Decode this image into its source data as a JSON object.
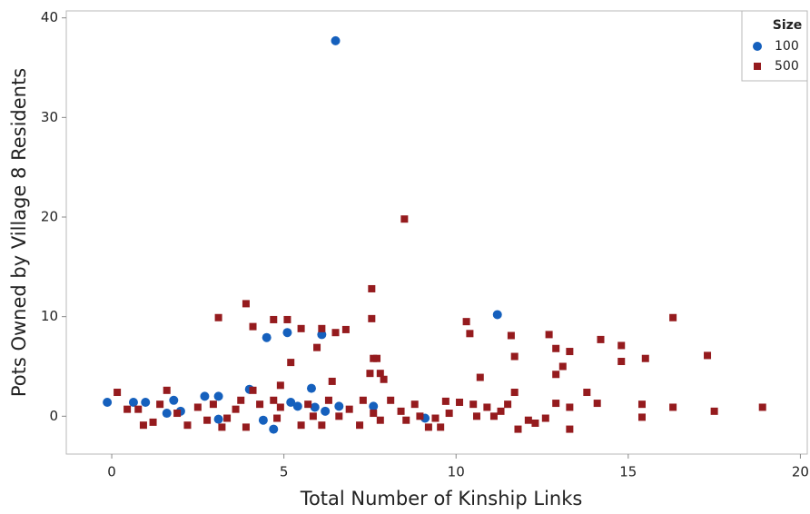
{
  "chart_data": {
    "type": "scatter",
    "xlabel": "Total Number of Kinship Links",
    "ylabel": "Pots Owned by Village 8 Residents",
    "legend_title": "Size",
    "legend": "upper right",
    "xlim": [
      -1.32,
      20.2
    ],
    "ylim": [
      -3.8,
      40.7
    ],
    "xticks": [
      0,
      5,
      10,
      15,
      20
    ],
    "yticks": [
      0,
      10,
      20,
      30,
      40
    ],
    "series": [
      {
        "name": "100",
        "color": "#1560bd",
        "marker": "circle",
        "x": [
          -0.13,
          0.63,
          0.98,
          1.8,
          1.6,
          2.0,
          2.7,
          3.1,
          3.1,
          4.0,
          4.5,
          4.7,
          4.4,
          5.1,
          5.2,
          5.4,
          5.8,
          5.9,
          6.1,
          6.5,
          6.6,
          7.6,
          9.1,
          11.2,
          6.2
        ],
        "values": [
          1.4,
          1.4,
          1.4,
          1.6,
          0.3,
          0.5,
          2.0,
          2.0,
          -0.3,
          2.7,
          7.9,
          -1.3,
          -0.4,
          8.4,
          1.4,
          1.0,
          2.8,
          0.9,
          8.2,
          37.7,
          1.0,
          1.0,
          -0.2,
          10.2,
          0.5
        ]
      },
      {
        "name": "500",
        "color": "#951b1e",
        "marker": "square",
        "x": [
          8.5,
          3.9,
          3.1,
          4.1,
          4.7,
          5.1,
          5.5,
          6.1,
          6.5,
          6.8,
          5.96,
          5.2,
          7.55,
          7.55,
          7.6,
          7.7,
          7.5,
          7.8,
          7.9,
          6.4,
          4.9,
          4.1,
          1.6,
          0.16,
          10.3,
          10.4,
          10.7,
          11.6,
          11.7,
          11.7,
          12.7,
          12.9,
          12.9,
          13.1,
          13.3,
          14.2,
          14.8,
          14.8,
          15.5,
          13.8,
          14.1,
          16.3,
          17.3,
          18.9,
          17.5,
          16.3,
          15.4,
          15.4,
          13.3,
          13.3,
          12.9,
          12.6,
          12.1,
          11.8,
          12.3,
          11.3,
          10.9,
          10.5,
          10.1,
          9.7,
          9.4,
          9.2,
          8.8,
          8.4,
          8.1,
          7.8,
          7.3,
          7.2,
          6.9,
          6.6,
          6.1,
          5.7,
          5.5,
          4.9,
          4.8,
          4.3,
          3.9,
          3.6,
          3.35,
          2.95,
          2.77,
          2.5,
          2.2,
          1.9,
          1.4,
          1.2,
          0.92,
          0.77,
          0.45,
          11.5,
          11.1,
          10.6,
          9.8,
          8.95,
          8.55,
          3.75,
          5.85,
          6.3,
          7.6,
          9.55,
          4.7,
          3.2
        ],
        "values": [
          19.8,
          11.3,
          9.9,
          9.0,
          9.7,
          9.7,
          8.8,
          8.8,
          8.4,
          8.7,
          6.9,
          5.4,
          12.8,
          9.8,
          5.8,
          5.8,
          4.3,
          4.3,
          3.7,
          3.5,
          3.1,
          2.6,
          2.6,
          2.4,
          9.5,
          8.3,
          3.9,
          8.1,
          6.0,
          2.4,
          8.2,
          6.8,
          4.2,
          5.0,
          6.5,
          7.7,
          7.1,
          5.5,
          5.8,
          2.4,
          1.3,
          9.9,
          6.1,
          0.9,
          0.5,
          0.9,
          1.2,
          -0.1,
          0.9,
          -1.3,
          1.3,
          -0.2,
          -0.4,
          -1.3,
          -0.7,
          0.5,
          0.9,
          1.2,
          1.4,
          1.5,
          -0.2,
          -1.1,
          1.2,
          0.5,
          1.6,
          -0.4,
          1.6,
          -0.9,
          0.7,
          0,
          -0.9,
          1.2,
          -0.9,
          0.9,
          -0.2,
          1.2,
          -1.1,
          0.7,
          -0.2,
          1.2,
          -0.4,
          0.9,
          -0.9,
          0.3,
          1.2,
          -0.6,
          -0.9,
          0.7,
          0.7,
          1.2,
          0,
          0,
          0.3,
          0,
          -0.4,
          1.6,
          0,
          1.6,
          0.3,
          -1.1,
          1.6,
          -1.1
        ]
      }
    ]
  }
}
